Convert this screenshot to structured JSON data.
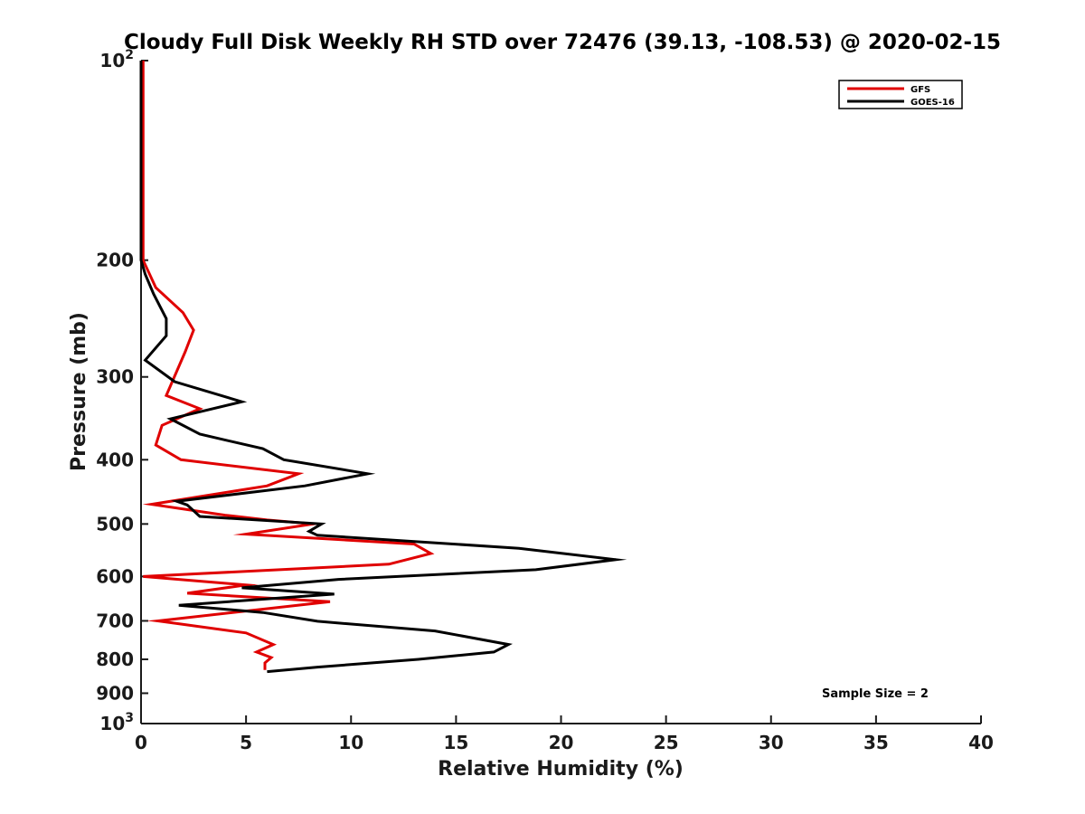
{
  "chart_data": {
    "type": "line",
    "title": "Cloudy Full Disk Weekly RH STD over 72476 (39.13, -108.53) @ 2020-02-15",
    "xlabel": "Relative Humidity (%)",
    "ylabel": "Pressure (mb)",
    "xlim": [
      0,
      40
    ],
    "ylim": [
      100,
      1000
    ],
    "y_scale": "log",
    "y_inverted": true,
    "x_ticks": [
      {
        "value": 0,
        "label": "0"
      },
      {
        "value": 5,
        "label": "5"
      },
      {
        "value": 10,
        "label": "10"
      },
      {
        "value": 15,
        "label": "15"
      },
      {
        "value": 20,
        "label": "20"
      },
      {
        "value": 25,
        "label": "25"
      },
      {
        "value": 30,
        "label": "30"
      },
      {
        "value": 35,
        "label": "35"
      },
      {
        "value": 40,
        "label": "40"
      }
    ],
    "y_ticks": [
      {
        "value": 100,
        "base": "10",
        "exp": "2"
      },
      {
        "value": 200,
        "label": "200"
      },
      {
        "value": 300,
        "label": "300"
      },
      {
        "value": 400,
        "label": "400"
      },
      {
        "value": 500,
        "label": "500"
      },
      {
        "value": 600,
        "label": "600"
      },
      {
        "value": 700,
        "label": "700"
      },
      {
        "value": 800,
        "label": "800"
      },
      {
        "value": 900,
        "label": "900"
      },
      {
        "value": 1000,
        "base": "10",
        "exp": "3"
      }
    ],
    "grid": false,
    "legend_position": "top-right",
    "annotation": "Sample Size = 2",
    "series": [
      {
        "name": "GFS",
        "color": "#e00000",
        "points": [
          [
            0.1,
            100
          ],
          [
            0.1,
            200
          ],
          [
            0.7,
            220
          ],
          [
            2.0,
            240
          ],
          [
            2.5,
            255
          ],
          [
            2.1,
            275
          ],
          [
            1.2,
            320
          ],
          [
            2.8,
            335
          ],
          [
            1.0,
            355
          ],
          [
            0.7,
            380
          ],
          [
            1.9,
            400
          ],
          [
            7.5,
            420
          ],
          [
            6.0,
            438
          ],
          [
            0.5,
            467
          ],
          [
            4.0,
            485
          ],
          [
            6.0,
            493
          ],
          [
            8.2,
            500
          ],
          [
            5.0,
            518
          ],
          [
            13.0,
            536
          ],
          [
            13.8,
            554
          ],
          [
            11.8,
            575
          ],
          [
            0.1,
            600
          ],
          [
            5.0,
            618
          ],
          [
            2.2,
            636
          ],
          [
            9.0,
            655
          ],
          [
            0.8,
            700
          ],
          [
            5.0,
            730
          ],
          [
            6.3,
            760
          ],
          [
            5.5,
            780
          ],
          [
            6.2,
            795
          ],
          [
            5.9,
            810
          ],
          [
            5.9,
            830
          ]
        ]
      },
      {
        "name": "GOES-16",
        "color": "#000000",
        "points": [
          [
            0.0,
            100
          ],
          [
            0.0,
            200
          ],
          [
            0.2,
            210
          ],
          [
            0.6,
            225
          ],
          [
            1.2,
            245
          ],
          [
            1.2,
            260
          ],
          [
            0.2,
            283
          ],
          [
            1.6,
            305
          ],
          [
            4.8,
            327
          ],
          [
            1.4,
            347
          ],
          [
            2.8,
            366
          ],
          [
            5.8,
            385
          ],
          [
            6.8,
            400
          ],
          [
            10.8,
            420
          ],
          [
            7.8,
            438
          ],
          [
            1.7,
            462
          ],
          [
            2.2,
            468
          ],
          [
            2.8,
            487
          ],
          [
            8.6,
            500
          ],
          [
            8.0,
            513
          ],
          [
            8.4,
            520
          ],
          [
            18.0,
            544
          ],
          [
            22.6,
            566
          ],
          [
            18.8,
            586
          ],
          [
            9.4,
            606
          ],
          [
            4.8,
            624
          ],
          [
            9.2,
            638
          ],
          [
            1.8,
            663
          ],
          [
            5.8,
            680
          ],
          [
            8.4,
            701
          ],
          [
            14.0,
            725
          ],
          [
            17.5,
            760
          ],
          [
            16.8,
            780
          ],
          [
            13.2,
            800
          ],
          [
            8.4,
            822
          ],
          [
            6.0,
            835
          ]
        ]
      }
    ]
  }
}
